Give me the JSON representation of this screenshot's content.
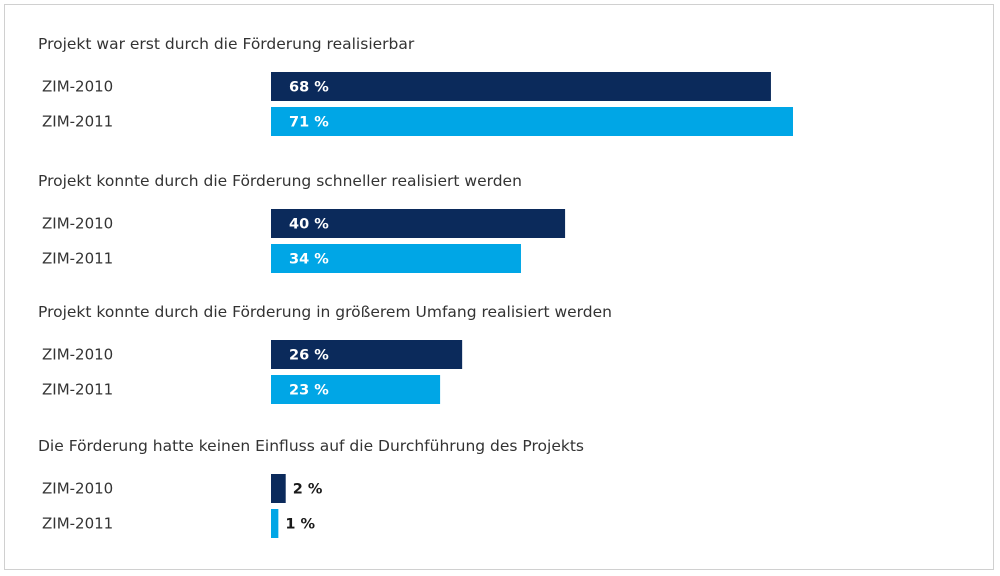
{
  "chart_data": {
    "type": "bar",
    "orientation": "horizontal",
    "unit": "%",
    "xlim": [
      0,
      71
    ],
    "grid": false,
    "colors": {
      "ZIM-2010": "#0b2a5b",
      "ZIM-2011": "#00a6e6"
    },
    "groups": [
      {
        "title": "Projekt war erst durch die Förderung realisierbar",
        "bars": [
          {
            "label": "ZIM-2010",
            "value": 68,
            "value_label": "68 %"
          },
          {
            "label": "ZIM-2011",
            "value": 71,
            "value_label": "71 %"
          }
        ]
      },
      {
        "title": "Projekt konnte durch die Förderung schneller realisiert werden",
        "bars": [
          {
            "label": "ZIM-2010",
            "value": 40,
            "value_label": "40 %"
          },
          {
            "label": "ZIM-2011",
            "value": 34,
            "value_label": "34 %"
          }
        ]
      },
      {
        "title": "Projekt konnte durch die Förderung in größerem Umfang realisiert werden",
        "bars": [
          {
            "label": "ZIM-2010",
            "value": 26,
            "value_label": "26 %"
          },
          {
            "label": "ZIM-2011",
            "value": 23,
            "value_label": "23 %"
          }
        ]
      },
      {
        "title": "Die Förderung hatte keinen Einfluss auf die Durchführung des Projekts",
        "bars": [
          {
            "label": "ZIM-2010",
            "value": 2,
            "value_label": "2 %"
          },
          {
            "label": "ZIM-2011",
            "value": 1,
            "value_label": "1 %"
          }
        ]
      }
    ]
  }
}
